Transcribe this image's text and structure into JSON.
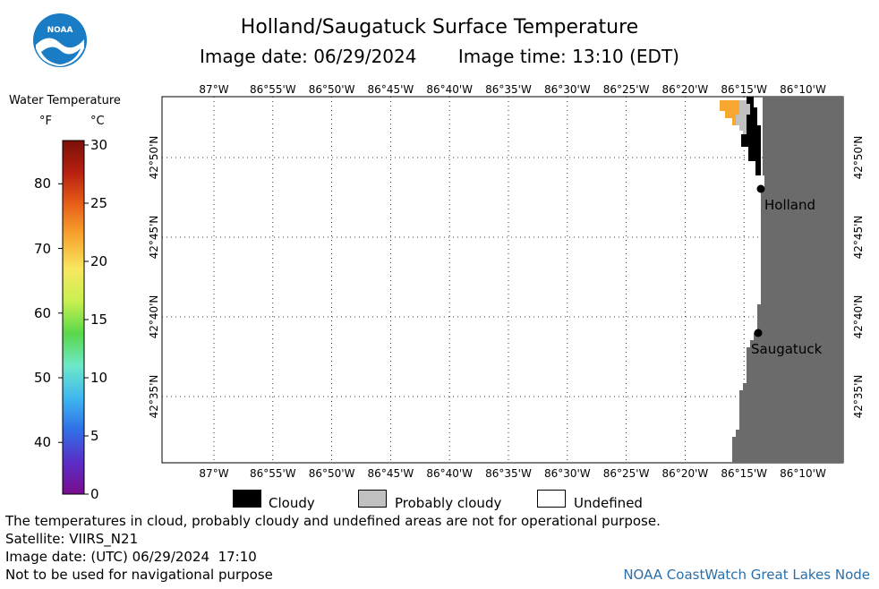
{
  "header": {
    "title": "Holland/Saugatuck Surface Temperature",
    "image_date": "Image date: 06/29/2024",
    "image_time": "Image time: 13:10 (EDT)"
  },
  "logo": {
    "text": "NOAA"
  },
  "colorbar": {
    "title": "Water Temperature",
    "unit_f": "°F",
    "unit_c": "°C",
    "f_ticks": [
      "80",
      "70",
      "60",
      "50",
      "40"
    ],
    "c_ticks": [
      "30",
      "25",
      "20",
      "15",
      "10",
      "5",
      "0"
    ],
    "range_c": [
      0,
      30
    ],
    "colors": [
      "#7a0c8c",
      "#5a2ec8",
      "#2f6fe6",
      "#3fb8f0",
      "#6ee8c8",
      "#5ad84a",
      "#c8f050",
      "#f8e860",
      "#f8a830",
      "#e86018",
      "#b82010",
      "#7a1008"
    ]
  },
  "map": {
    "lon_labels": [
      "87°W",
      "86°55'W",
      "86°50'W",
      "86°45'W",
      "86°40'W",
      "86°35'W",
      "86°30'W",
      "86°25'W",
      "86°20'W",
      "86°15'W",
      "86°10'W"
    ],
    "lat_labels": [
      "42°50'N",
      "42°45'N",
      "42°40'N",
      "42°35'N"
    ],
    "places": [
      {
        "name": "Holland"
      },
      {
        "name": "Saugatuck"
      }
    ],
    "colors": {
      "land": "#6b6b6b",
      "cloudy": "#000000",
      "probably_cloudy": "#c0c0c0",
      "warm_water": "#f8a830"
    }
  },
  "legend": {
    "items": [
      {
        "label": "Cloudy",
        "color": "#000000"
      },
      {
        "label": "Probably cloudy",
        "color": "#c0c0c0"
      },
      {
        "label": "Undefined",
        "color": "#ffffff"
      }
    ]
  },
  "notes": {
    "line1": "The temperatures in cloud, probably cloudy and undefined areas are not for operational purpose.",
    "line2": "Satellite: VIIRS_N21",
    "line3": "Image date: (UTC) 06/29/2024  17:10",
    "line4": "Not to be used for navigational purpose",
    "credit": "NOAA CoastWatch Great Lakes Node"
  }
}
